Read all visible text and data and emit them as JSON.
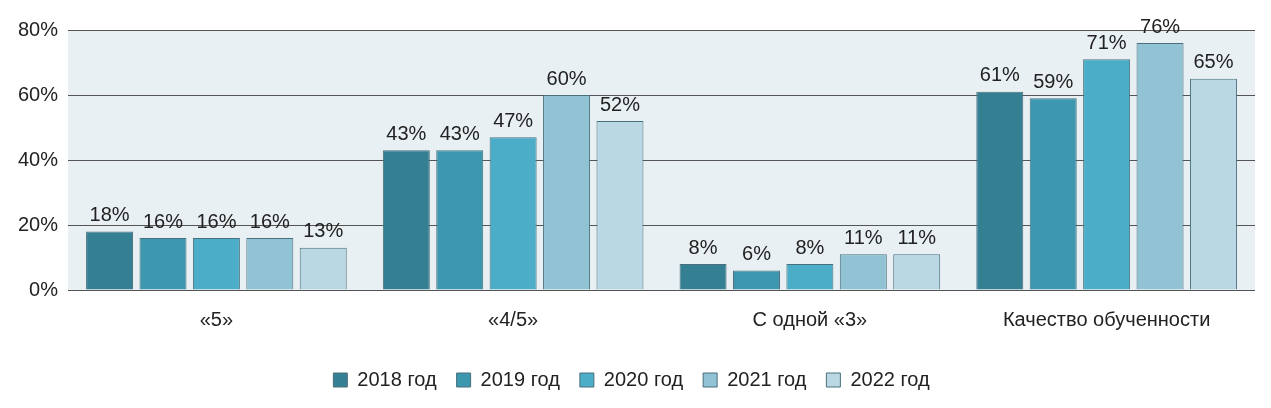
{
  "chart_data": {
    "type": "bar",
    "categories": [
      "«5»",
      "«4/5»",
      "С одной «3»",
      "Качество обученности"
    ],
    "series": [
      {
        "name": "2018 год",
        "color": "#357f93",
        "values": [
          18,
          43,
          8,
          61
        ],
        "value_labels": [
          "18%",
          "43%",
          "8%",
          "61%"
        ]
      },
      {
        "name": "2019 год",
        "color": "#3d97ae",
        "values": [
          16,
          43,
          6,
          59
        ],
        "value_labels": [
          "16%",
          "43%",
          "6%",
          "59%"
        ]
      },
      {
        "name": "2020 год",
        "color": "#4badc7",
        "values": [
          16,
          47,
          8,
          71
        ],
        "value_labels": [
          "16%",
          "47%",
          "8%",
          "71%"
        ]
      },
      {
        "name": "2021 год",
        "color": "#92c3d5",
        "values": [
          16,
          60,
          11,
          76
        ],
        "value_labels": [
          "16%",
          "60%",
          "11%",
          "76%"
        ]
      },
      {
        "name": "2022 год",
        "color": "#b9d8e3",
        "values": [
          13,
          52,
          11,
          65
        ],
        "value_labels": [
          "13%",
          "52%",
          "11%",
          "65%"
        ]
      }
    ],
    "ylim": [
      0,
      80
    ],
    "yticks": [
      {
        "value": 0,
        "label": "0%"
      },
      {
        "value": 20,
        "label": "20%"
      },
      {
        "value": 40,
        "label": "40%"
      },
      {
        "value": 60,
        "label": "60%"
      },
      {
        "value": 80,
        "label": "80%"
      }
    ],
    "grid": "y",
    "legend": "bottom"
  }
}
